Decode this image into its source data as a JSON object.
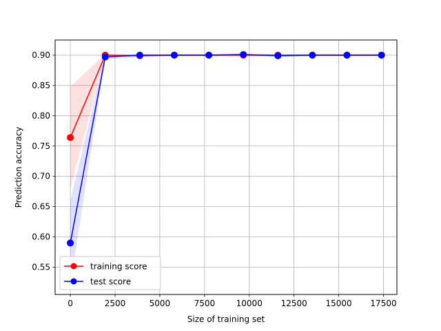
{
  "chart_data": {
    "type": "line",
    "xlabel": "Size of training set",
    "ylabel": "Prediction accuracy",
    "xlim": [
      -850,
      18250
    ],
    "ylim": [
      0.505,
      0.925
    ],
    "xticks": [
      0,
      2500,
      5000,
      7500,
      10000,
      12500,
      15000,
      17500
    ],
    "xtick_labels": [
      "0",
      "2500",
      "5000",
      "7500",
      "10000",
      "12500",
      "15000",
      "17500"
    ],
    "yticks": [
      0.55,
      0.6,
      0.65,
      0.7,
      0.75,
      0.8,
      0.85,
      0.9
    ],
    "ytick_labels": [
      "0.55",
      "0.60",
      "0.65",
      "0.70",
      "0.75",
      "0.80",
      "0.85",
      "0.90"
    ],
    "grid": true,
    "legend_position": "bottom-left",
    "x": [
      0,
      1950,
      3880,
      5810,
      7740,
      9670,
      11600,
      13530,
      15460,
      17390
    ],
    "series": [
      {
        "name": "training score",
        "color": "#ff0000",
        "band_color": "#ff0000",
        "values": [
          0.764,
          0.9,
          0.899,
          0.9,
          0.9,
          0.9,
          0.9,
          0.9,
          0.9,
          0.9
        ],
        "lower": [
          0.68,
          0.898,
          0.898,
          0.899,
          0.899,
          0.9,
          0.899,
          0.899,
          0.899,
          0.899
        ],
        "upper": [
          0.848,
          0.902,
          0.901,
          0.901,
          0.901,
          0.901,
          0.901,
          0.901,
          0.901,
          0.901
        ]
      },
      {
        "name": "test score",
        "color": "#0000ff",
        "band_color": "#0000ff",
        "values": [
          0.59,
          0.897,
          0.9,
          0.9,
          0.9,
          0.901,
          0.899,
          0.9,
          0.9,
          0.9
        ],
        "lower": [
          0.52,
          0.893,
          0.897,
          0.898,
          0.898,
          0.898,
          0.897,
          0.898,
          0.898,
          0.898
        ],
        "upper": [
          0.66,
          0.901,
          0.902,
          0.902,
          0.902,
          0.903,
          0.902,
          0.902,
          0.902,
          0.902
        ]
      }
    ]
  }
}
